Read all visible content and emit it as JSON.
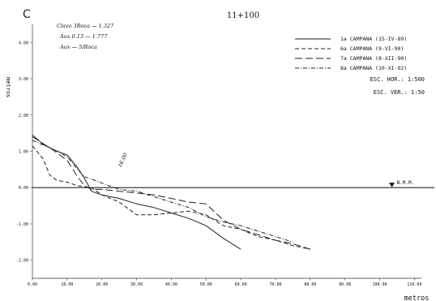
{
  "chart_data": {
    "type": "line",
    "corner_mark": "C",
    "title": "11+100",
    "xlabel": "metros",
    "ylabel": "metros",
    "xlim": [
      0,
      112
    ],
    "ylim": [
      -2.5,
      4.5
    ],
    "xticks": [
      "0.00",
      "10.00",
      "20.00",
      "30.00",
      "40.00",
      "50.00",
      "60.00",
      "70.00",
      "80.00",
      "90.00",
      "100.00",
      "110.00"
    ],
    "yticks": [
      "4.00",
      "3.00",
      "2.00",
      "1.00",
      "0.00",
      "-1.00",
      "-2.00"
    ],
    "reference_line": {
      "y": 0,
      "label": "N.M.M.",
      "marker_x": 103.5
    },
    "scale": {
      "horizontal": "ESC. HOR.: 1:500",
      "vertical": "ESC. VER.: 1:50"
    },
    "notes": [
      "Clavo 3Roca — 1.327",
      "Aux 0.13 — 1.777",
      "Aux — 5/Roca"
    ],
    "annotations": [
      {
        "text": "16.00",
        "x": 25.5,
        "y": 0.55
      }
    ],
    "series": [
      {
        "name": "1a CAMPANA (15-IV-89)",
        "style": "solid",
        "values": [
          [
            0,
            1.45
          ],
          [
            3,
            1.2
          ],
          [
            6,
            1.05
          ],
          [
            10,
            0.9
          ],
          [
            13,
            0.55
          ],
          [
            15,
            0.25
          ],
          [
            17,
            -0.1
          ],
          [
            20,
            -0.2
          ],
          [
            25,
            -0.3
          ],
          [
            30,
            -0.45
          ],
          [
            35,
            -0.55
          ],
          [
            40,
            -0.7
          ],
          [
            45,
            -0.85
          ],
          [
            50,
            -1.05
          ],
          [
            55,
            -1.4
          ],
          [
            60,
            -1.7
          ]
        ]
      },
      {
        "name": "6a CAMPANA (9-VI-90)",
        "style": "dashed",
        "values": [
          [
            0,
            1.15
          ],
          [
            3,
            0.8
          ],
          [
            5,
            0.35
          ],
          [
            7,
            0.2
          ],
          [
            10,
            0.15
          ],
          [
            13,
            0.05
          ],
          [
            17,
            0.0
          ],
          [
            20,
            -0.2
          ],
          [
            25,
            -0.4
          ],
          [
            30,
            -0.75
          ],
          [
            35,
            -0.75
          ],
          [
            40,
            -0.7
          ],
          [
            45,
            -0.65
          ],
          [
            50,
            -0.75
          ],
          [
            55,
            -1.05
          ],
          [
            60,
            -1.15
          ],
          [
            65,
            -1.35
          ],
          [
            70,
            -1.45
          ],
          [
            75,
            -1.6
          ],
          [
            80,
            -1.7
          ]
        ]
      },
      {
        "name": "7a CAMPANA (8-XII-90)",
        "style": "long-dashed",
        "values": [
          [
            0,
            1.4
          ],
          [
            5,
            1.1
          ],
          [
            10,
            0.75
          ],
          [
            13,
            0.3
          ],
          [
            15,
            0.05
          ],
          [
            17,
            -0.05
          ],
          [
            20,
            -0.05
          ],
          [
            25,
            -0.1
          ],
          [
            30,
            -0.15
          ],
          [
            35,
            -0.2
          ],
          [
            40,
            -0.3
          ],
          [
            45,
            -0.4
          ],
          [
            50,
            -0.45
          ],
          [
            55,
            -0.9
          ],
          [
            60,
            -1.15
          ],
          [
            65,
            -1.3
          ],
          [
            70,
            -1.45
          ],
          [
            75,
            -1.55
          ],
          [
            80,
            -1.7
          ]
        ]
      },
      {
        "name": "8a CAMPANA (10-XI-92)",
        "style": "dash-dot",
        "values": [
          [
            0,
            1.3
          ],
          [
            5,
            1.1
          ],
          [
            10,
            0.85
          ],
          [
            13,
            0.5
          ],
          [
            15,
            0.3
          ],
          [
            18,
            0.2
          ],
          [
            22,
            0.05
          ],
          [
            25,
            -0.05
          ],
          [
            30,
            -0.1
          ],
          [
            35,
            -0.25
          ],
          [
            40,
            -0.4
          ],
          [
            45,
            -0.55
          ],
          [
            50,
            -0.8
          ],
          [
            55,
            -0.95
          ],
          [
            60,
            -1.05
          ],
          [
            65,
            -1.2
          ],
          [
            70,
            -1.35
          ],
          [
            75,
            -1.5
          ]
        ]
      }
    ]
  }
}
